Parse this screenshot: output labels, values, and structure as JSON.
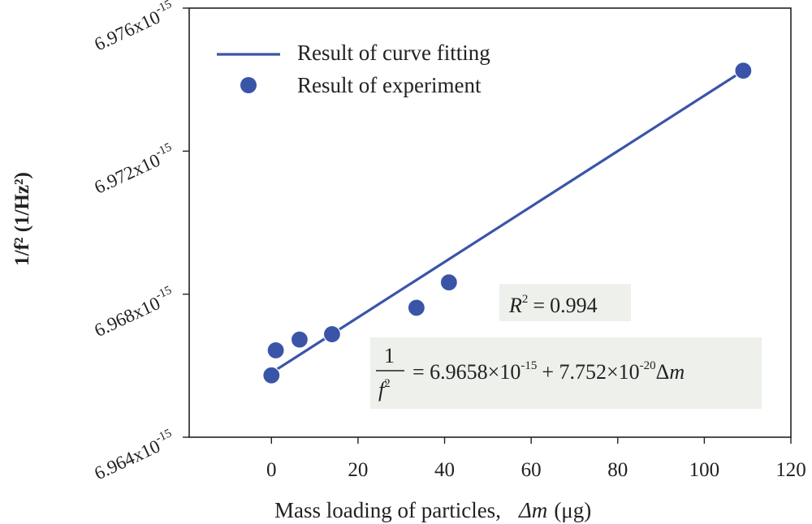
{
  "chart_data": {
    "type": "scatter",
    "title": "",
    "xlabel": "Mass loading of particles,",
    "xlabel_symbol": "Δm",
    "xlabel_unit": "(μg)",
    "ylabel": "1/f² (1/Hz²)",
    "xlim": [
      -19,
      120
    ],
    "ylim": [
      6.964e-15,
      6.976e-15
    ],
    "x_ticks": [
      0,
      20,
      40,
      60,
      80,
      100,
      120
    ],
    "x_tick_labels": [
      "0",
      "20",
      "40",
      "60",
      "80",
      "100",
      "120"
    ],
    "y_ticks": [
      6.964e-15,
      6.968e-15,
      6.972e-15,
      6.976e-15
    ],
    "y_tick_mantissas": [
      "6.964x10",
      "6.968x10",
      "6.972x10",
      "6.976x10"
    ],
    "y_tick_exponent": "-15",
    "series": [
      {
        "name": "Result of experiment",
        "kind": "scatter",
        "color": "#3a55a8",
        "x": [
          0,
          1,
          6.5,
          14,
          33.5,
          41,
          109
        ],
        "y": [
          6.96573e-15,
          6.96643e-15,
          6.96673e-15,
          6.96688e-15,
          6.96762e-15,
          6.96833e-15,
          6.97425e-15
        ]
      },
      {
        "name": "Result of curve fitting",
        "kind": "line",
        "color": "#3a55a8",
        "x": [
          -1,
          109
        ],
        "intercept": 6.9658e-15,
        "slope": 7.752e-20
      }
    ],
    "legend": {
      "position": "top-left",
      "entries": [
        "Result of curve fitting",
        "Result of experiment"
      ]
    },
    "annotations": {
      "r2_label": "R",
      "r2_exp": "2",
      "r2_eq": "=",
      "r2_value": "0.994",
      "eq_num": "1",
      "eq_den_f": "f",
      "eq_den_exp": "2",
      "eq_rhs1": "= 6.9658×10",
      "eq_exp1": "-15",
      "eq_rhs2": "+ 7.752×10",
      "eq_exp2": "-20",
      "eq_delta": "Δ",
      "eq_m": "m"
    }
  }
}
